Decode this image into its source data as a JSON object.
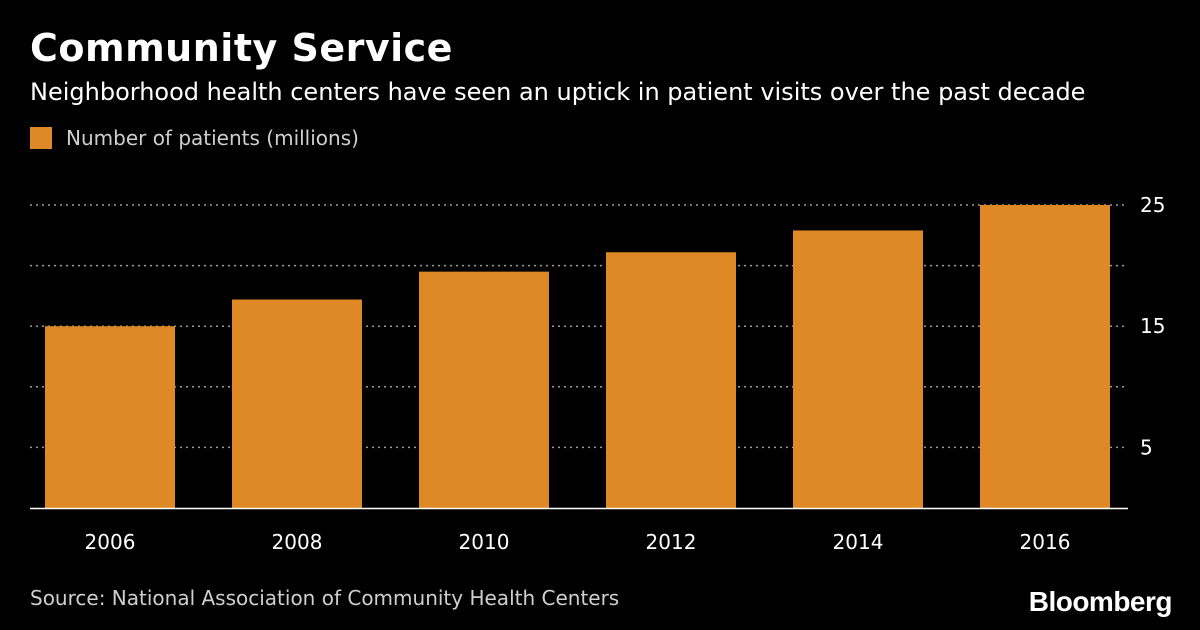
{
  "header": {
    "title": "Community Service",
    "subtitle": "Neighborhood health centers have seen an uptick in patient visits over the past decade"
  },
  "footer": {
    "source": "Source: National Association of Community Health Centers",
    "logo": "Bloomberg"
  },
  "chart_data": {
    "type": "bar",
    "categories": [
      "2006",
      "2008",
      "2010",
      "2012",
      "2014",
      "2016"
    ],
    "series": [
      {
        "name": "Number of patients (millions)",
        "values": [
          15.0,
          17.2,
          19.5,
          21.1,
          22.9,
          25.0
        ],
        "color": "#df8926"
      }
    ],
    "ylim": [
      0,
      25
    ],
    "y_ticks": [
      5,
      15,
      25
    ],
    "y_gridlines": [
      5,
      10,
      15,
      20,
      25
    ],
    "y_axis_position": "right",
    "grid": true,
    "legend_position": "top-left",
    "background_color": "#000000"
  }
}
